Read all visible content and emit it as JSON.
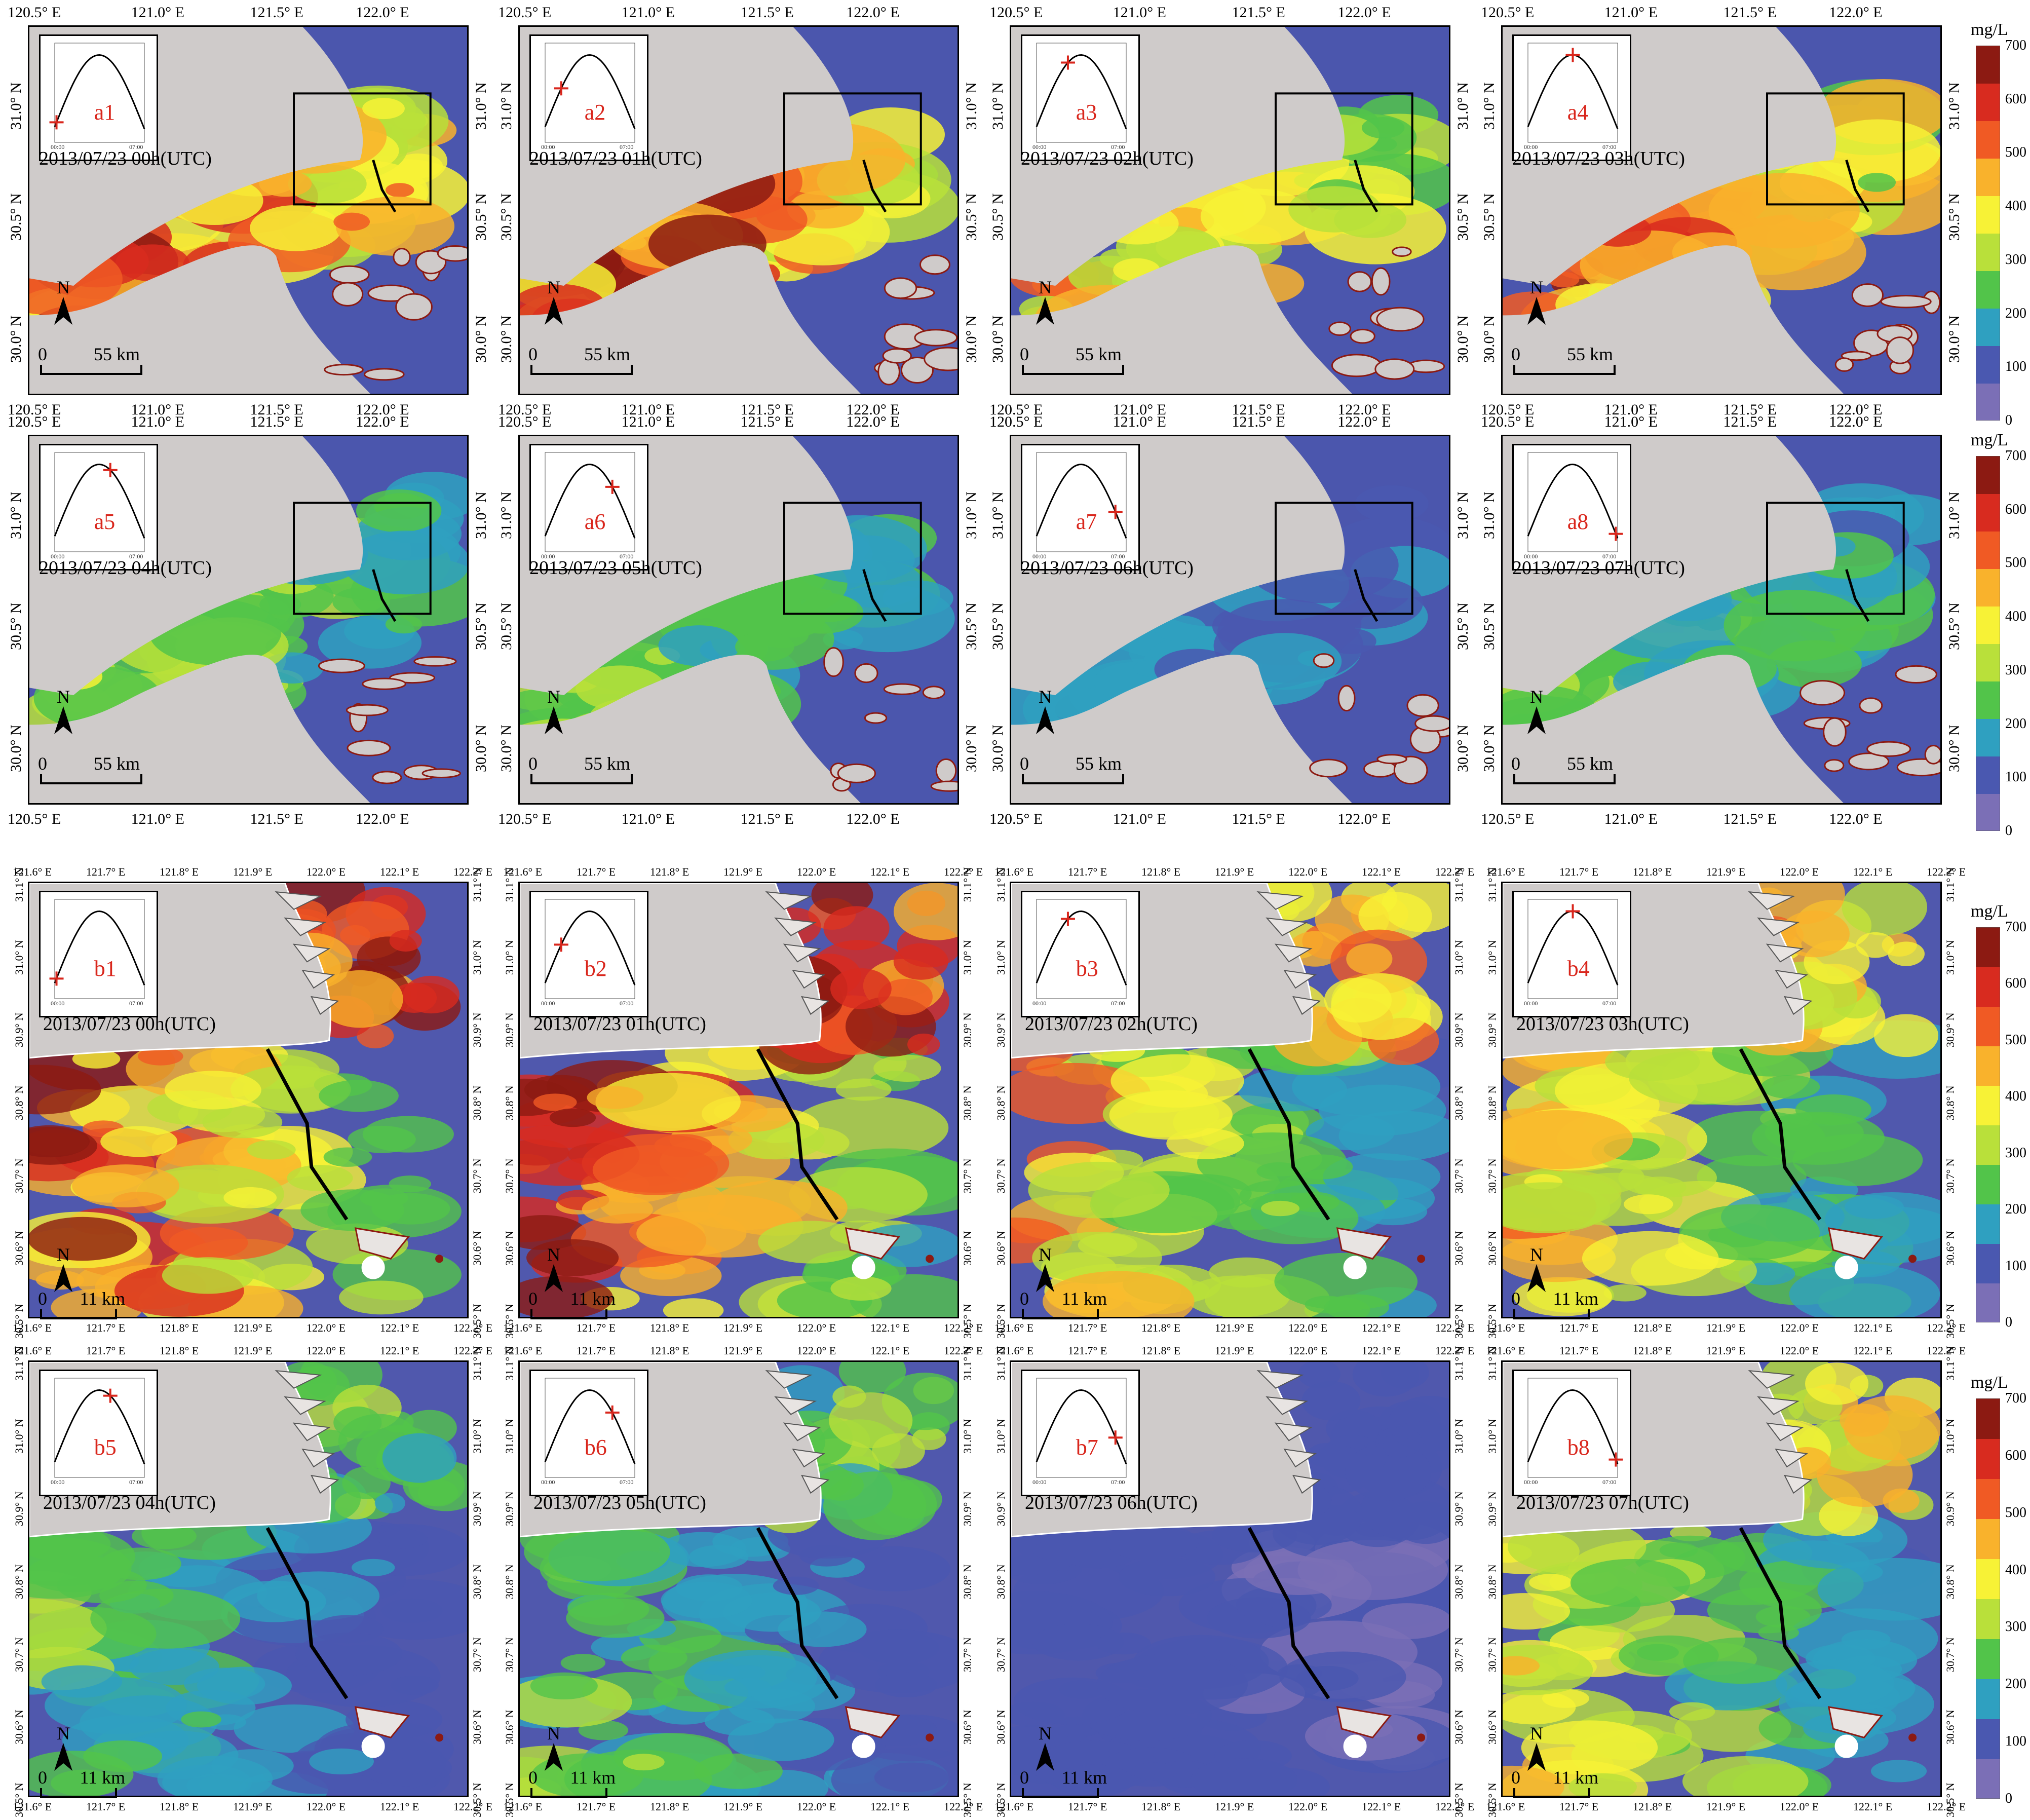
{
  "colorbar": {
    "unit": "mg/L",
    "ticks": [
      "700",
      "600",
      "500",
      "400",
      "300",
      "200",
      "100",
      "0"
    ],
    "range": [
      0,
      700
    ],
    "colors": [
      "#7b6fb6",
      "#4a58b0",
      "#2fa0c0",
      "#52c44a",
      "#b9e03a",
      "#f7f236",
      "#f9b22c",
      "#f05a24",
      "#d82b1f",
      "#8c1a12"
    ]
  },
  "regional": {
    "x_ticks": [
      "120.5° E",
      "121.0° E",
      "121.5° E",
      "122.0° E"
    ],
    "y_ticks": [
      "31.0° N",
      "30.5° N",
      "30.0° N"
    ],
    "scale_zero": "0",
    "scale_text": "55 km",
    "north": "N",
    "panels": [
      {
        "label": "a1",
        "time": "2013/07/23 00h(UTC)",
        "tide_phase": 0.02,
        "sediment": 0.85
      },
      {
        "label": "a2",
        "time": "2013/07/23 01h(UTC)",
        "tide_phase": 0.18,
        "sediment": 0.9
      },
      {
        "label": "a3",
        "time": "2013/07/23 02h(UTC)",
        "tide_phase": 0.35,
        "sediment": 0.72
      },
      {
        "label": "a4",
        "time": "2013/07/23 03h(UTC)",
        "tide_phase": 0.5,
        "sediment": 0.8
      },
      {
        "label": "a5",
        "time": "2013/07/23 04h(UTC)",
        "tide_phase": 0.62,
        "sediment": 0.45
      },
      {
        "label": "a6",
        "time": "2013/07/23 05h(UTC)",
        "tide_phase": 0.75,
        "sediment": 0.4
      },
      {
        "label": "a7",
        "time": "2013/07/23 06h(UTC)",
        "tide_phase": 0.88,
        "sediment": 0.22
      },
      {
        "label": "a8",
        "time": "2013/07/23 07h(UTC)",
        "tide_phase": 0.98,
        "sediment": 0.38
      }
    ]
  },
  "local": {
    "x_ticks": [
      "121.6° E",
      "121.7° E",
      "121.8° E",
      "121.9° E",
      "122.0° E",
      "122.1° E",
      "122.2° E"
    ],
    "y_ticks": [
      "31.1° N",
      "31.0° N",
      "30.9° N",
      "30.8° N",
      "30.7° N",
      "30.6° N",
      "30.5° N"
    ],
    "scale_zero": "0",
    "scale_text": "11 km",
    "north": "N",
    "panels": [
      {
        "label": "b1",
        "time": "2013/07/23 00h(UTC)",
        "tide_phase": 0.02,
        "sediment": 0.88
      },
      {
        "label": "b2",
        "time": "2013/07/23 01h(UTC)",
        "tide_phase": 0.18,
        "sediment": 0.9
      },
      {
        "label": "b3",
        "time": "2013/07/23 02h(UTC)",
        "tide_phase": 0.35,
        "sediment": 0.65
      },
      {
        "label": "b4",
        "time": "2013/07/23 03h(UTC)",
        "tide_phase": 0.5,
        "sediment": 0.62
      },
      {
        "label": "b5",
        "time": "2013/07/23 04h(UTC)",
        "tide_phase": 0.62,
        "sediment": 0.35
      },
      {
        "label": "b6",
        "time": "2013/07/23 05h(UTC)",
        "tide_phase": 0.75,
        "sediment": 0.38
      },
      {
        "label": "b7",
        "time": "2013/07/23 06h(UTC)",
        "tide_phase": 0.88,
        "sediment": 0.12
      },
      {
        "label": "b8",
        "time": "2013/07/23 07h(UTC)",
        "tide_phase": 0.98,
        "sediment": 0.55
      }
    ]
  },
  "inset_axis": {
    "start": "00:00",
    "end": "07:00"
  }
}
